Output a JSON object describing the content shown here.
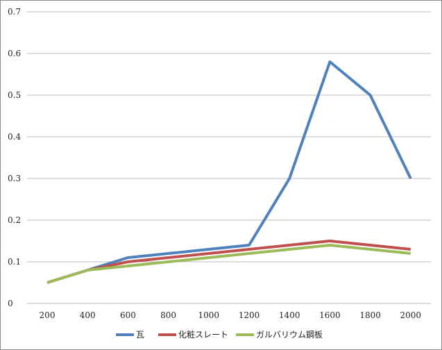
{
  "chart_data": {
    "type": "line",
    "x": [
      200,
      400,
      600,
      800,
      1000,
      1200,
      1400,
      1600,
      1800,
      2000
    ],
    "x_tick_labels": [
      "200",
      "400",
      "600",
      "800",
      "1000",
      "1200",
      "1400",
      "1600",
      "1800",
      "2000"
    ],
    "y_tick_labels": [
      "0",
      "0.1",
      "0.2",
      "0.3",
      "0.4",
      "0.5",
      "0.6",
      "0.7"
    ],
    "ylim": [
      0,
      0.7
    ],
    "y_ticks": [
      0,
      0.1,
      0.2,
      0.3,
      0.4,
      0.5,
      0.6,
      0.7
    ],
    "grid": true,
    "legend_position": "bottom",
    "title": "",
    "xlabel": "",
    "ylabel": "",
    "series": [
      {
        "name": "瓦",
        "color": "#4f81bd",
        "values": [
          0.05,
          0.08,
          0.11,
          0.12,
          0.13,
          0.14,
          0.3,
          0.58,
          0.5,
          0.3
        ]
      },
      {
        "name": "化粧スレート",
        "color": "#c0504d",
        "values": [
          0.05,
          0.08,
          0.1,
          0.11,
          0.12,
          0.13,
          0.14,
          0.15,
          0.14,
          0.13
        ]
      },
      {
        "name": "ガルバリウム鋼板",
        "color": "#9bbb59",
        "values": [
          0.05,
          0.08,
          0.09,
          0.1,
          0.11,
          0.12,
          0.13,
          0.14,
          0.13,
          0.12
        ]
      }
    ]
  }
}
